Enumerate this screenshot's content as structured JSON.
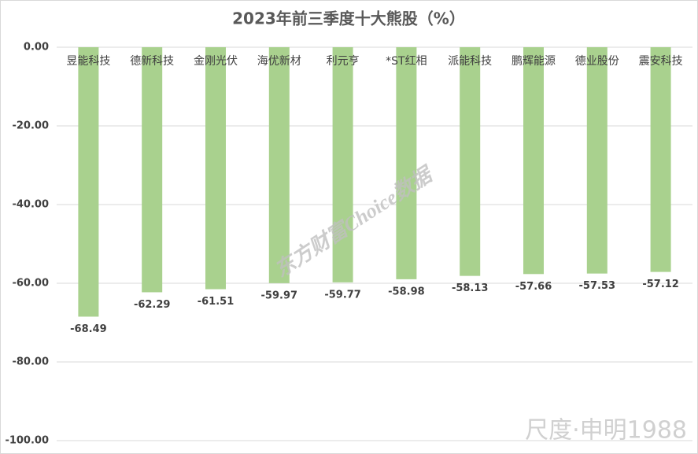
{
  "chart_data": {
    "type": "bar",
    "title": "2023年前三季度十大熊股（%）",
    "categories": [
      "昱能科技",
      "德新科技",
      "金刚光伏",
      "海优新材",
      "利元亨",
      "*ST红相",
      "派能科技",
      "鹏辉能源",
      "德业股份",
      "震安科技"
    ],
    "values": [
      -68.49,
      -62.29,
      -61.51,
      -59.97,
      -59.77,
      -58.98,
      -58.13,
      -57.66,
      -57.53,
      -57.12
    ],
    "color": "#a9d18e",
    "ylim": [
      -100,
      0
    ],
    "yticks": [
      {
        "value": 0,
        "label": "0.00"
      },
      {
        "value": -20,
        "label": "-20.00"
      },
      {
        "value": -40,
        "label": "-40.00"
      },
      {
        "value": -60,
        "label": "-60.00"
      },
      {
        "value": -80,
        "label": "-80.00"
      },
      {
        "value": -100,
        "label": "-100.00"
      }
    ],
    "grid": true,
    "watermarks": [
      "东方财富Choice数据",
      "尺度·申明1988"
    ]
  }
}
